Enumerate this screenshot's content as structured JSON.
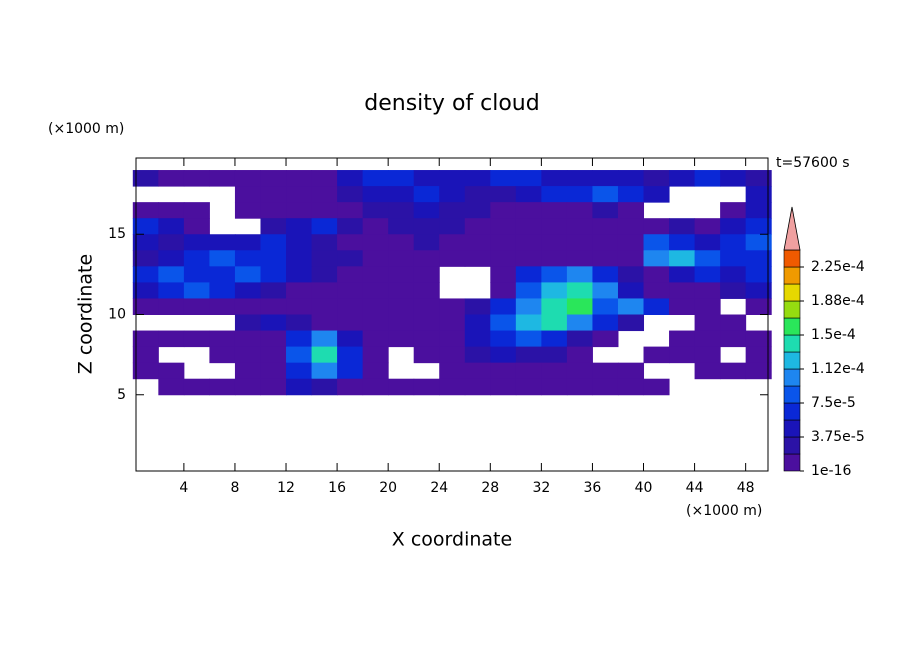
{
  "chart_data": {
    "type": "contour",
    "title": "density of cloud",
    "xlabel": "X coordinate",
    "ylabel": "Z coordinate",
    "xunit": "(×1000 m)",
    "yunit": "(×1000 m)",
    "annotation": "t=57600 s",
    "xlim": [
      0.25,
      49.75
    ],
    "ylim": [
      0.25,
      19.75
    ],
    "xticks": [
      4,
      8,
      12,
      16,
      20,
      24,
      28,
      32,
      36,
      40,
      44,
      48
    ],
    "yticks": [
      5,
      10,
      15
    ],
    "x": [
      1,
      3,
      5,
      7,
      9,
      11,
      13,
      15,
      17,
      19,
      21,
      23,
      25,
      27,
      29,
      31,
      33,
      35,
      37,
      39,
      41,
      43,
      45,
      47,
      49
    ],
    "y": [
      18.5,
      17.5,
      16.5,
      15.5,
      14.5,
      13.5,
      12.5,
      11.5,
      10.5,
      9.5,
      8.5,
      7.5,
      6.5,
      5.5
    ],
    "z": [
      [
        2.5e-05,
        5e-06,
        5e-06,
        5e-06,
        5e-06,
        5e-06,
        5e-06,
        5e-06,
        4.5e-05,
        6e-05,
        6e-05,
        4.5e-05,
        4.5e-05,
        4.5e-05,
        6e-05,
        6e-05,
        4.5e-05,
        4.5e-05,
        4.5e-05,
        4.5e-05,
        2.5e-05,
        4.5e-05,
        6e-05,
        4.5e-05,
        2.5e-05
      ],
      [
        null,
        null,
        null,
        null,
        5e-06,
        5e-06,
        5e-06,
        5e-06,
        2.5e-05,
        4.5e-05,
        4.5e-05,
        6e-05,
        4.5e-05,
        2.5e-05,
        2.5e-05,
        4.5e-05,
        6e-05,
        6e-05,
        8e-05,
        6e-05,
        4.5e-05,
        null,
        null,
        null,
        4.5e-05
      ],
      [
        5e-06,
        5e-06,
        5e-06,
        null,
        5e-06,
        5e-06,
        5e-06,
        5e-06,
        5e-06,
        2.5e-05,
        2.5e-05,
        4.5e-05,
        2.5e-05,
        2.5e-05,
        5e-06,
        5e-06,
        5e-06,
        5e-06,
        2.5e-05,
        5e-06,
        null,
        null,
        null,
        5e-06,
        4.5e-05
      ],
      [
        6e-05,
        4.5e-05,
        5e-06,
        null,
        null,
        2.5e-05,
        4.5e-05,
        6e-05,
        2.5e-05,
        5e-06,
        2.5e-05,
        2.5e-05,
        2.5e-05,
        5e-06,
        5e-06,
        5e-06,
        5e-06,
        5e-06,
        5e-06,
        5e-06,
        5e-06,
        2.5e-05,
        5e-06,
        4.5e-05,
        6e-05
      ],
      [
        4.5e-05,
        2.5e-05,
        4.5e-05,
        4.5e-05,
        4.5e-05,
        6e-05,
        4.5e-05,
        2.5e-05,
        5e-06,
        5e-06,
        5e-06,
        2.5e-05,
        5e-06,
        5e-06,
        5e-06,
        5e-06,
        5e-06,
        5e-06,
        5e-06,
        5e-06,
        8e-05,
        6e-05,
        4.5e-05,
        6e-05,
        8e-05
      ],
      [
        2.5e-05,
        4.5e-05,
        6e-05,
        8e-05,
        6e-05,
        6e-05,
        4.5e-05,
        2.5e-05,
        2.5e-05,
        5e-06,
        5e-06,
        5e-06,
        5e-06,
        5e-06,
        5e-06,
        5e-06,
        5e-06,
        5e-06,
        5e-06,
        5e-06,
        0.0001,
        0.00012,
        8e-05,
        6e-05,
        6e-05
      ],
      [
        6e-05,
        8e-05,
        6e-05,
        6e-05,
        8e-05,
        6e-05,
        4.5e-05,
        2.5e-05,
        5e-06,
        5e-06,
        5e-06,
        5e-06,
        null,
        null,
        5e-06,
        6e-05,
        8e-05,
        0.0001,
        6e-05,
        2.5e-05,
        5e-06,
        4.5e-05,
        6e-05,
        4.5e-05,
        6e-05
      ],
      [
        4.5e-05,
        6e-05,
        8e-05,
        6e-05,
        4.5e-05,
        2.5e-05,
        5e-06,
        5e-06,
        5e-06,
        5e-06,
        5e-06,
        5e-06,
        null,
        null,
        5e-06,
        8e-05,
        0.00012,
        0.00014,
        0.0001,
        4.5e-05,
        5e-06,
        5e-06,
        5e-06,
        2.5e-05,
        4.5e-05
      ],
      [
        5e-06,
        5e-06,
        5e-06,
        5e-06,
        5e-06,
        5e-06,
        5e-06,
        5e-06,
        5e-06,
        5e-06,
        5e-06,
        5e-06,
        5e-06,
        2.5e-05,
        6e-05,
        0.0001,
        0.00014,
        0.00016,
        8e-05,
        0.0001,
        6e-05,
        5e-06,
        5e-06,
        null,
        5e-06
      ],
      [
        null,
        null,
        null,
        null,
        2.5e-05,
        4.5e-05,
        2.5e-05,
        5e-06,
        5e-06,
        5e-06,
        5e-06,
        5e-06,
        5e-06,
        4.5e-05,
        8e-05,
        0.00012,
        0.00014,
        0.0001,
        6e-05,
        2.5e-05,
        null,
        null,
        5e-06,
        5e-06,
        null
      ],
      [
        5e-06,
        5e-06,
        5e-06,
        5e-06,
        5e-06,
        5e-06,
        6e-05,
        0.0001,
        4.5e-05,
        5e-06,
        5e-06,
        5e-06,
        5e-06,
        4.5e-05,
        6e-05,
        8e-05,
        6e-05,
        2.5e-05,
        5e-06,
        null,
        null,
        5e-06,
        5e-06,
        5e-06,
        5e-06
      ],
      [
        5e-06,
        null,
        null,
        5e-06,
        5e-06,
        5e-06,
        8e-05,
        0.00014,
        6e-05,
        5e-06,
        null,
        5e-06,
        5e-06,
        2.5e-05,
        4.5e-05,
        2.5e-05,
        2.5e-05,
        5e-06,
        null,
        null,
        5e-06,
        5e-06,
        5e-06,
        null,
        5e-06
      ],
      [
        5e-06,
        5e-06,
        null,
        null,
        5e-06,
        5e-06,
        6e-05,
        0.0001,
        6e-05,
        5e-06,
        null,
        null,
        5e-06,
        5e-06,
        5e-06,
        5e-06,
        5e-06,
        5e-06,
        5e-06,
        5e-06,
        null,
        null,
        5e-06,
        5e-06,
        5e-06
      ],
      [
        null,
        5e-06,
        5e-06,
        5e-06,
        5e-06,
        5e-06,
        4.5e-05,
        2.5e-05,
        5e-06,
        5e-06,
        5e-06,
        5e-06,
        5e-06,
        5e-06,
        5e-06,
        5e-06,
        5e-06,
        5e-06,
        5e-06,
        5e-06,
        5e-06,
        null,
        null,
        null,
        null
      ]
    ],
    "colorbar": {
      "levels": [
        1e-16,
        1.875e-05,
        3.75e-05,
        5.625e-05,
        7.5e-05,
        9.375e-05,
        0.0001125,
        0.00013125,
        0.00015,
        0.00016875,
        0.0001875,
        0.00020625,
        0.000225,
        0.00024375
      ],
      "colors": [
        "#4b0f9e",
        "#2b12a6",
        "#1a14b8",
        "#0a28d6",
        "#0a55ea",
        "#1e86f0",
        "#1eb8e2",
        "#1edcb0",
        "#2ae65a",
        "#96dc10",
        "#e6d800",
        "#f09a00",
        "#f05a00"
      ],
      "extend_color": "#f0a0a0",
      "ticks": [
        {
          "value": 1e-16,
          "label": "1e-16"
        },
        {
          "value": 3.75e-05,
          "label": "3.75e-5"
        },
        {
          "value": 7.5e-05,
          "label": "7.5e-5"
        },
        {
          "value": 0.0001125,
          "label": "1.12e-4"
        },
        {
          "value": 0.00015,
          "label": "1.5e-4"
        },
        {
          "value": 0.0001875,
          "label": "1.88e-4"
        },
        {
          "value": 0.000225,
          "label": "2.25e-4"
        }
      ]
    }
  }
}
